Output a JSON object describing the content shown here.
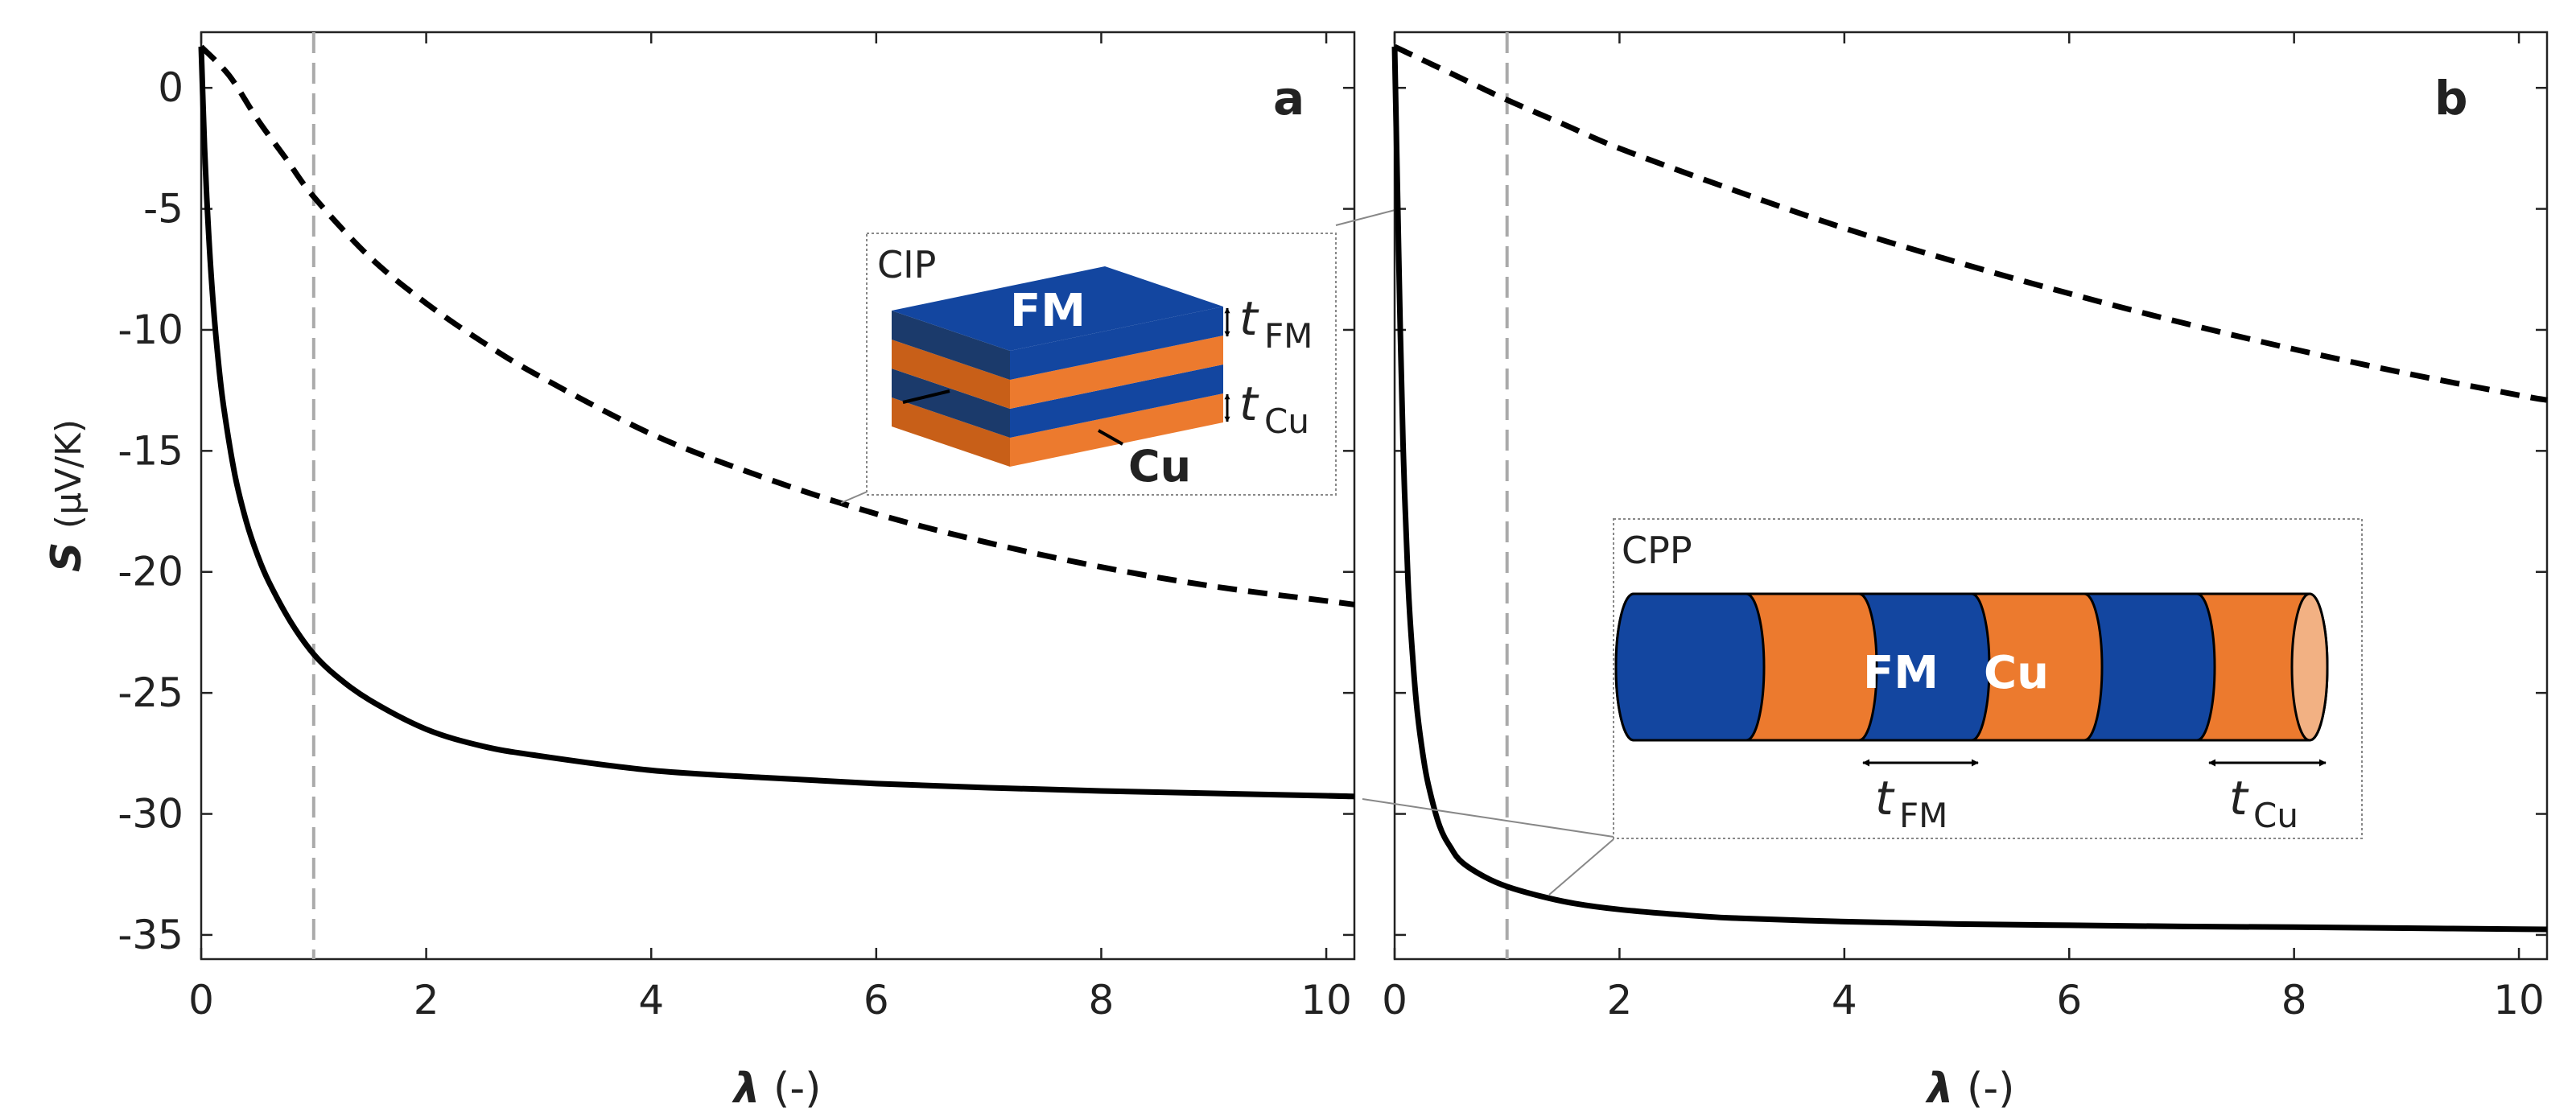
{
  "colors": {
    "fm_blue": "#1346a0",
    "fm_blue_dark": "#1b3a6b",
    "cu_orange": "#ec7a2e",
    "cu_orange_dark": "#c85f18",
    "cu_end": "#f2b183",
    "guide": "#aaaaaa",
    "callout": "#888888",
    "curve": "#000000"
  },
  "chart_data": [
    {
      "type": "line",
      "panel_label": "a",
      "xlabel_symbol": "λ",
      "xlabel_unit": "(-)",
      "ylabel_symbol": "S",
      "ylabel_unit": "(μV/K)",
      "xlim": [
        0,
        10.25
      ],
      "ylim": [
        -36,
        2.3
      ],
      "xticks": [
        0,
        2,
        4,
        6,
        8,
        10
      ],
      "yticks": [
        0,
        -5,
        -10,
        -15,
        -20,
        -25,
        -30,
        -35
      ],
      "vline_x": 1,
      "series": [
        {
          "name": "solid",
          "style": "solid",
          "x": [
            0,
            0.03,
            0.06,
            0.1,
            0.15,
            0.2,
            0.3,
            0.4,
            0.5,
            0.6,
            0.8,
            1.0,
            1.2,
            1.5,
            2,
            2.5,
            3,
            4,
            5,
            6,
            7,
            8,
            9,
            10,
            10.25
          ],
          "y": [
            1.7,
            -2.5,
            -5.5,
            -8.5,
            -11.2,
            -13.2,
            -16.0,
            -17.9,
            -19.3,
            -20.4,
            -22.1,
            -23.4,
            -24.3,
            -25.3,
            -26.5,
            -27.2,
            -27.6,
            -28.2,
            -28.5,
            -28.75,
            -28.92,
            -29.05,
            -29.15,
            -29.25,
            -29.28
          ]
        },
        {
          "name": "dashed",
          "style": "dashed",
          "x": [
            0,
            0.25,
            0.5,
            0.75,
            1,
            1.5,
            2,
            2.5,
            3,
            4,
            5,
            6,
            7,
            8,
            9,
            10,
            10.25
          ],
          "y": [
            1.7,
            0.5,
            -1.3,
            -2.9,
            -4.5,
            -7.0,
            -8.9,
            -10.5,
            -11.9,
            -14.3,
            -16.1,
            -17.6,
            -18.8,
            -19.8,
            -20.6,
            -21.2,
            -21.35
          ]
        }
      ],
      "inset": {
        "title": "CIP",
        "layers": [
          "FM",
          "Cu",
          "FM",
          "Cu"
        ],
        "top_label": "FM",
        "side_label": "Cu",
        "dim_label_fm_t": "t",
        "dim_label_fm_sub": "FM",
        "dim_label_cu_t": "t",
        "dim_label_cu_sub": "Cu"
      }
    },
    {
      "type": "line",
      "panel_label": "b",
      "xlabel_symbol": "λ",
      "xlabel_unit": "(-)",
      "xlim": [
        0,
        10.25
      ],
      "ylim": [
        -36,
        2.3
      ],
      "xticks": [
        0,
        2,
        4,
        6,
        8,
        10
      ],
      "yticks": [
        0,
        -5,
        -10,
        -15,
        -20,
        -25,
        -30,
        -35
      ],
      "vline_x": 1,
      "series": [
        {
          "name": "solid",
          "style": "solid",
          "x": [
            0,
            0.02,
            0.05,
            0.08,
            0.12,
            0.16,
            0.2,
            0.25,
            0.3,
            0.4,
            0.5,
            0.6,
            0.8,
            1.0,
            1.3,
            1.6,
            2,
            2.5,
            3,
            4,
            5,
            6,
            7,
            8,
            9,
            10,
            10.25
          ],
          "y": [
            1.7,
            -3,
            -10,
            -15.5,
            -20.5,
            -23.5,
            -25.7,
            -27.5,
            -28.8,
            -30.5,
            -31.4,
            -32.0,
            -32.6,
            -33.0,
            -33.4,
            -33.7,
            -33.95,
            -34.15,
            -34.3,
            -34.45,
            -34.55,
            -34.6,
            -34.65,
            -34.68,
            -34.72,
            -34.76,
            -34.77
          ]
        },
        {
          "name": "dashed",
          "style": "dashed",
          "x": [
            0,
            0.5,
            1,
            1.5,
            2,
            3,
            4,
            5,
            6,
            7,
            8,
            9,
            10,
            10.25
          ],
          "y": [
            1.7,
            0.6,
            -0.5,
            -1.5,
            -2.5,
            -4.2,
            -5.8,
            -7.2,
            -8.5,
            -9.7,
            -10.8,
            -11.8,
            -12.7,
            -12.9
          ]
        }
      ],
      "inset": {
        "title": "CPP",
        "segments": [
          "FM",
          "Cu",
          "FM",
          "Cu",
          "FM",
          "Cu"
        ],
        "fm_label": "FM",
        "cu_label": "Cu",
        "dim_label_fm_t": "t",
        "dim_label_fm_sub": "FM",
        "dim_label_cu_t": "t",
        "dim_label_cu_sub": "Cu"
      }
    }
  ]
}
